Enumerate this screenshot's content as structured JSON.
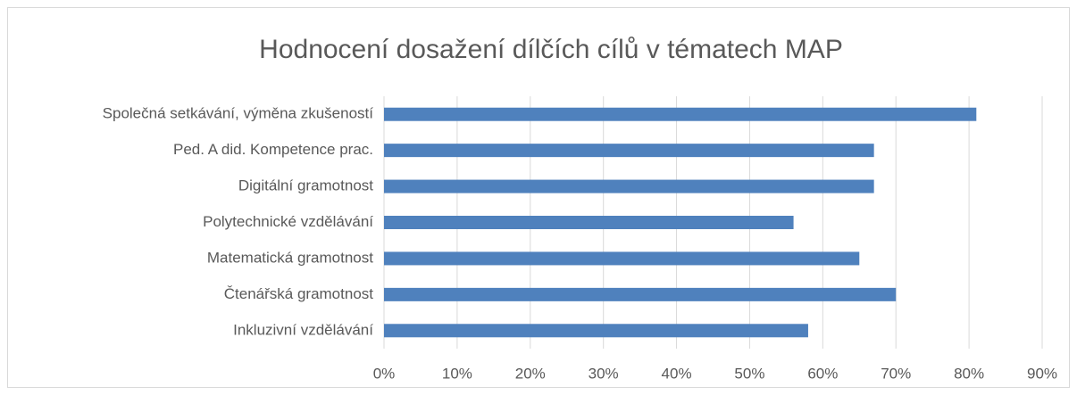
{
  "chart_data": {
    "type": "bar",
    "orientation": "horizontal",
    "title": "Hodnocení dosažení dílčích cílů v tématech MAP",
    "categories": [
      "Společná setkávání, výměna zkušeností",
      "Ped. A did. Kompetence prac.",
      "Digitální gramotnost",
      "Polytechnické vzdělávání",
      "Matematická gramotnost",
      "Čtenářská gramotnost",
      "Inkluzivní vzdělávání"
    ],
    "values": [
      81,
      67,
      67,
      56,
      65,
      70,
      58
    ],
    "color": "#4f81bd",
    "xlim": [
      0,
      90
    ],
    "xticks": [
      {
        "value": 0,
        "label": "0%"
      },
      {
        "value": 10,
        "label": "10%"
      },
      {
        "value": 20,
        "label": "20%"
      },
      {
        "value": 30,
        "label": "30%"
      },
      {
        "value": 40,
        "label": "40%"
      },
      {
        "value": 50,
        "label": "50%"
      },
      {
        "value": 60,
        "label": "60%"
      },
      {
        "value": 70,
        "label": "70%"
      },
      {
        "value": 80,
        "label": "80%"
      },
      {
        "value": 90,
        "label": "90%"
      }
    ],
    "grid": true
  }
}
